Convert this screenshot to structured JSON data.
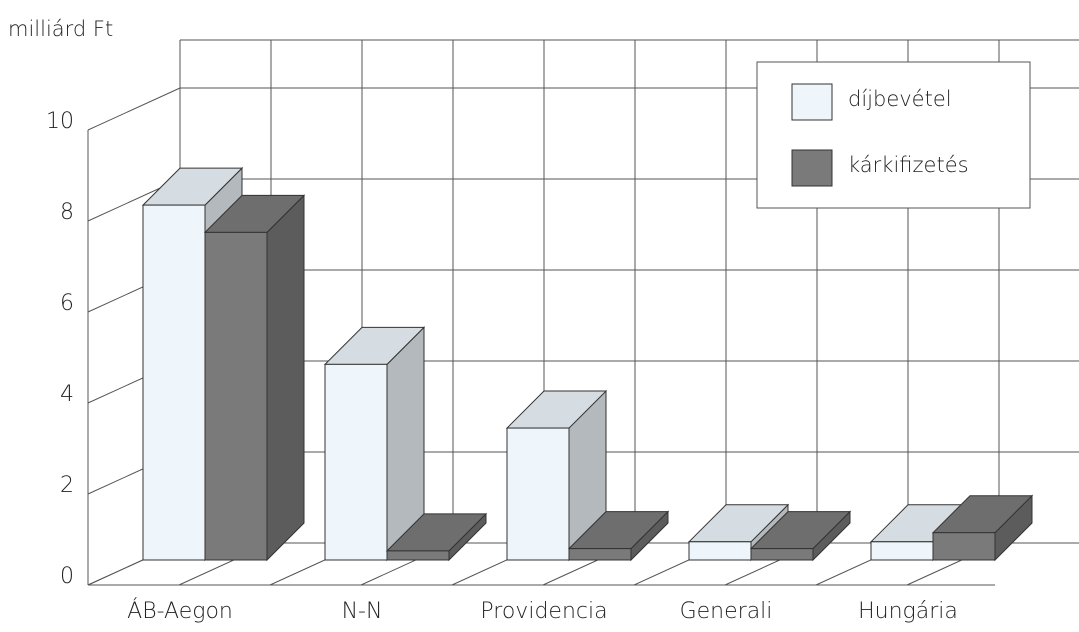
{
  "chart_data": {
    "type": "bar3d",
    "y_label": "milliárd Ft",
    "categories": [
      "ÁB-Aegon",
      "N-N",
      "Providencia",
      "Generali",
      "Hungária"
    ],
    "series": [
      {
        "name": "díjbevétel",
        "color": "#eef6fb",
        "values": [
          7.8,
          4.3,
          2.9,
          0.4,
          0.4
        ]
      },
      {
        "name": "kárkifizetés",
        "color": "#7a7a7a",
        "values": [
          7.2,
          0.2,
          0.25,
          0.25,
          0.6
        ]
      }
    ],
    "ylim": [
      0,
      10
    ],
    "yticks": [
      0,
      2,
      4,
      6,
      8,
      10
    ],
    "grid": true,
    "legend": "top-right"
  }
}
